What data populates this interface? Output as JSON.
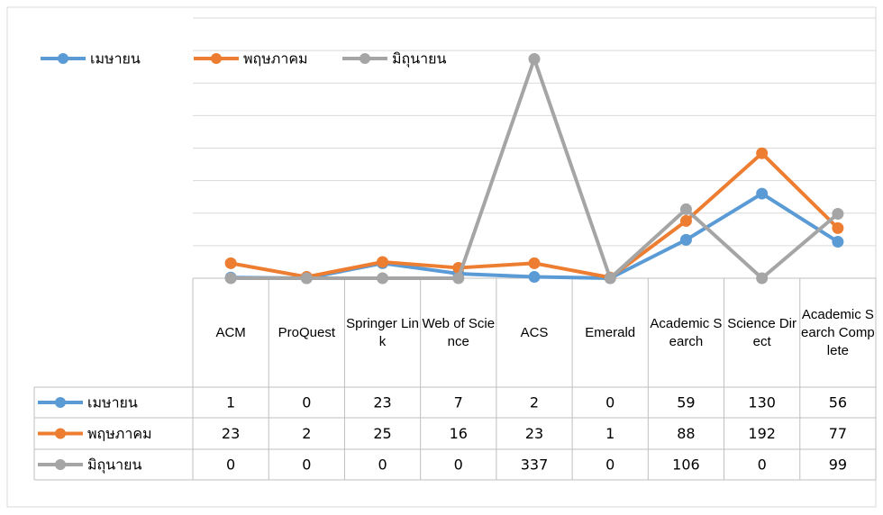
{
  "chart_data": {
    "type": "line",
    "categories": [
      "ACM",
      "ProQuest",
      "Springer Link",
      "Web of Science",
      "ACS",
      "Emerald",
      "Academic Search",
      "Science Direct",
      "Academic Search Complete"
    ],
    "series": [
      {
        "name": "เมษายน",
        "color": "#5b9bd5",
        "values": [
          1,
          0,
          23,
          7,
          2,
          0,
          59,
          130,
          56
        ]
      },
      {
        "name": "พฤษภาคม",
        "color": "#ed7d31",
        "values": [
          23,
          2,
          25,
          16,
          23,
          1,
          88,
          192,
          77
        ]
      },
      {
        "name": "มิถุนายน",
        "color": "#a5a5a5",
        "values": [
          0,
          0,
          0,
          0,
          337,
          0,
          106,
          0,
          99
        ]
      }
    ],
    "ylim": [
      0,
      400
    ],
    "yticks": [
      0,
      50,
      100,
      150,
      200,
      250,
      300,
      350,
      400
    ],
    "grid": true,
    "legend": "top"
  }
}
